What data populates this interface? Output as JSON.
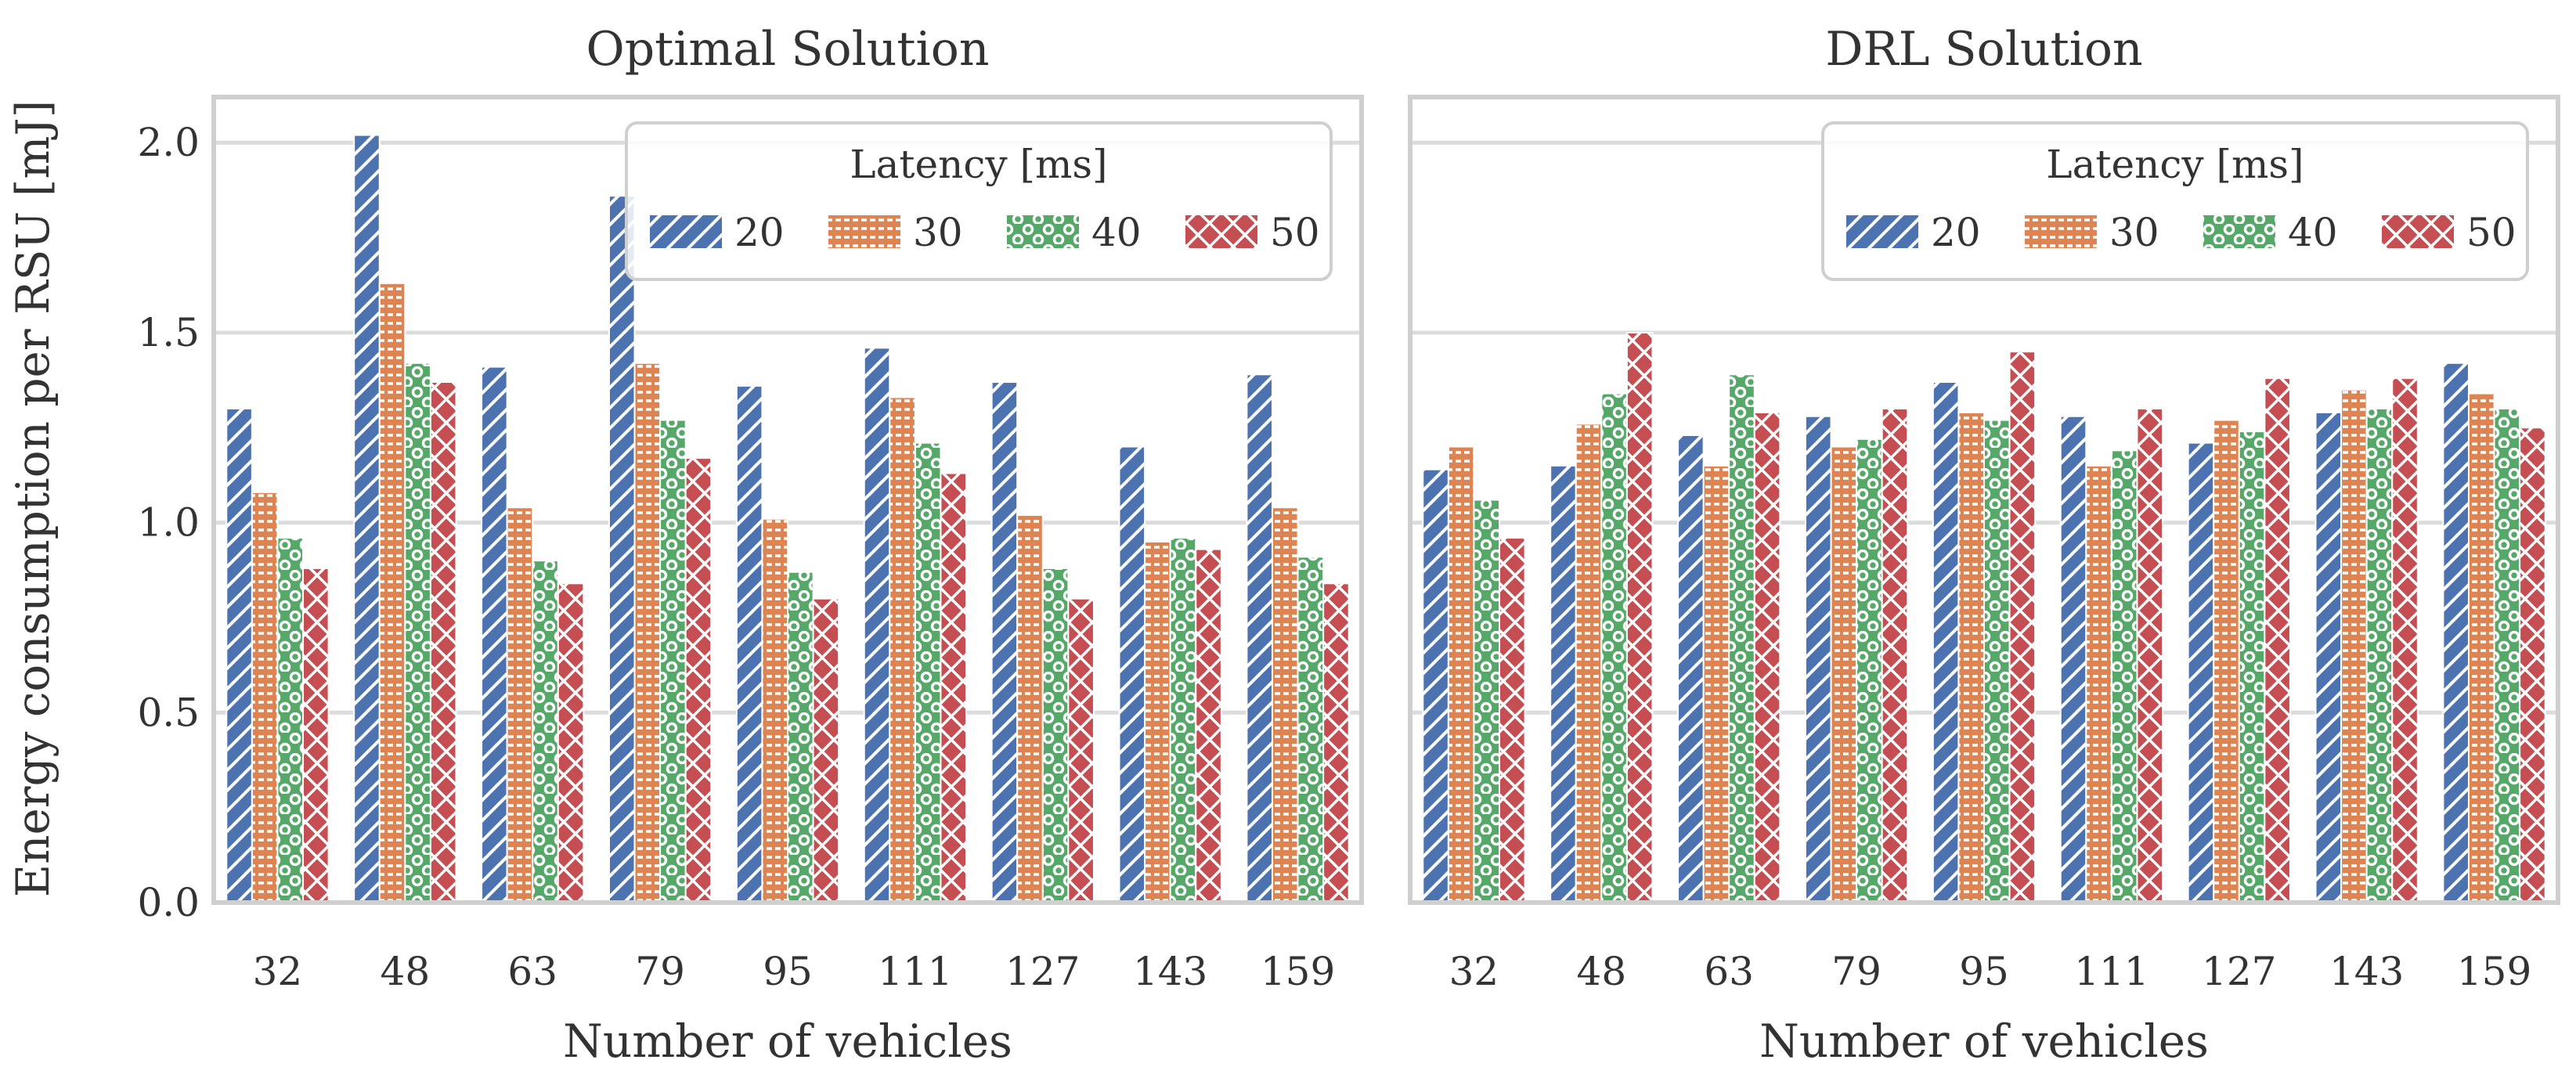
{
  "chart_data": {
    "type": "bar",
    "ylabel": "Energy consumption per RSU [mJ]",
    "xlabel": "Number of vehicles",
    "ylim": [
      0,
      2.12
    ],
    "yticks": [
      0,
      0.5,
      1,
      1.5,
      2
    ],
    "ytick_labels": [
      "0.0",
      "0.5",
      "1.0",
      "1.5",
      "2.0"
    ],
    "categories": [
      "32",
      "48",
      "63",
      "79",
      "95",
      "111",
      "127",
      "143",
      "159"
    ],
    "legend": {
      "title": "Latency [ms]",
      "entries": [
        "20",
        "30",
        "40",
        "50"
      ],
      "placement": "upper-right"
    },
    "series_styles": [
      {
        "name": "20",
        "color": "#4c72b0",
        "hatch": "diagonal"
      },
      {
        "name": "30",
        "color": "#dd8452",
        "hatch": "dashes"
      },
      {
        "name": "40",
        "color": "#55a868",
        "hatch": "dots"
      },
      {
        "name": "50",
        "color": "#c44e52",
        "hatch": "crosshatch"
      }
    ],
    "panels": [
      {
        "title": "Optimal Solution",
        "series": [
          {
            "name": "20",
            "values": [
              1.3,
              2.02,
              1.41,
              1.86,
              1.36,
              1.46,
              1.37,
              1.2,
              1.39
            ]
          },
          {
            "name": "30",
            "values": [
              1.08,
              1.63,
              1.04,
              1.42,
              1.01,
              1.33,
              1.02,
              0.95,
              1.04
            ]
          },
          {
            "name": "40",
            "values": [
              0.96,
              1.42,
              0.9,
              1.27,
              0.87,
              1.21,
              0.88,
              0.96,
              0.91
            ]
          },
          {
            "name": "50",
            "values": [
              0.88,
              1.37,
              0.84,
              1.17,
              0.8,
              1.13,
              0.8,
              0.93,
              0.84
            ]
          }
        ]
      },
      {
        "title": "DRL Solution",
        "series": [
          {
            "name": "20",
            "values": [
              1.14,
              1.15,
              1.23,
              1.28,
              1.37,
              1.28,
              1.21,
              1.29,
              1.42
            ]
          },
          {
            "name": "30",
            "values": [
              1.2,
              1.26,
              1.15,
              1.2,
              1.29,
              1.15,
              1.27,
              1.35,
              1.34
            ]
          },
          {
            "name": "40",
            "values": [
              1.06,
              1.34,
              1.39,
              1.22,
              1.27,
              1.19,
              1.24,
              1.3,
              1.3
            ]
          },
          {
            "name": "50",
            "values": [
              0.96,
              1.5,
              1.29,
              1.3,
              1.45,
              1.3,
              1.38,
              1.38,
              1.25
            ]
          }
        ]
      }
    ]
  }
}
